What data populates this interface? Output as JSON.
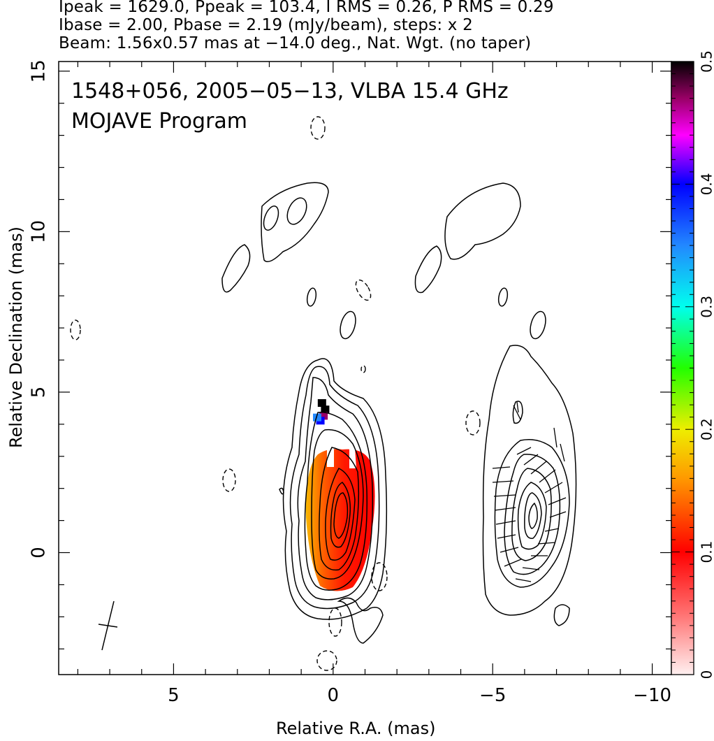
{
  "header": {
    "line1": "Ipeak = 1629.0, Ppeak = 103.4, I RMS = 0.26, P RMS = 0.29",
    "line2": "Ibase = 2.00, Pbase = 2.19 (mJy/beam), steps: x 2",
    "line3": "Beam: 1.56x0.57 mas at −14.0 deg., Nat. Wgt. (no taper)"
  },
  "chart_data": {
    "type": "heatmap",
    "title": "1548+056, 2005−05−13, VLBA 15.4 GHz",
    "subtitle": "MOJAVE Program",
    "xlabel": "Relative R.A. (mas)",
    "ylabel": "Relative Declination (mas)",
    "xlim": [
      8.6,
      -10.6
    ],
    "ylim": [
      -3.8,
      15.3
    ],
    "xticks": [
      {
        "value": 5,
        "label": "5"
      },
      {
        "value": 0,
        "label": "0"
      },
      {
        "value": -5,
        "label": "−5"
      },
      {
        "value": -10,
        "label": "−10"
      }
    ],
    "yticks": [
      {
        "value": 0,
        "label": "0"
      },
      {
        "value": 5,
        "label": "5"
      },
      {
        "value": 10,
        "label": "10"
      },
      {
        "value": 15,
        "label": "15"
      }
    ],
    "colorbar": {
      "range": [
        0,
        0.5
      ],
      "ticks": [
        {
          "value": 0,
          "label": "0"
        },
        {
          "value": 0.1,
          "label": "0.1"
        },
        {
          "value": 0.2,
          "label": "0.2"
        },
        {
          "value": 0.3,
          "label": "0.3"
        },
        {
          "value": 0.4,
          "label": "0.4"
        },
        {
          "value": 0.5,
          "label": "0.5"
        }
      ],
      "stops": [
        {
          "v": 0.0,
          "color": "#fff0f0"
        },
        {
          "v": 0.05,
          "color": "#ff7070"
        },
        {
          "v": 0.1,
          "color": "#ff0000"
        },
        {
          "v": 0.16,
          "color": "#ff9900"
        },
        {
          "v": 0.2,
          "color": "#eeee00"
        },
        {
          "v": 0.25,
          "color": "#22ff00"
        },
        {
          "v": 0.3,
          "color": "#00ffee"
        },
        {
          "v": 0.35,
          "color": "#2288ff"
        },
        {
          "v": 0.4,
          "color": "#0000ff"
        },
        {
          "v": 0.44,
          "color": "#ff00ff"
        },
        {
          "v": 0.47,
          "color": "#990066"
        },
        {
          "v": 0.5,
          "color": "#000000"
        }
      ]
    },
    "beam": {
      "major_mas": 1.56,
      "minor_mas": 0.57,
      "pa_deg": -14.0
    },
    "polarization_knot": [
      {
        "ra": 0.35,
        "dec": 4.65,
        "frac": 0.5
      },
      {
        "ra": 0.25,
        "dec": 4.45,
        "frac": 0.48
      },
      {
        "ra": 0.3,
        "dec": 4.25,
        "frac": 0.45
      },
      {
        "ra": 0.4,
        "dec": 4.1,
        "frac": 0.38
      },
      {
        "ra": 0.5,
        "dec": 4.2,
        "frac": 0.33
      }
    ]
  }
}
